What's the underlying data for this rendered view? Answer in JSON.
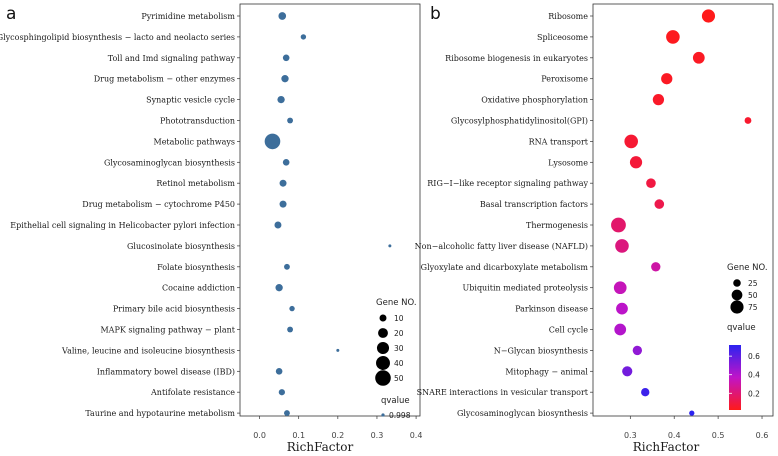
{
  "chart_data": [
    {
      "type": "scatter",
      "panel_label": "a",
      "xlabel": "RichFactor",
      "xlim": [
        -0.05,
        0.41
      ],
      "x_ticks": [
        0.0,
        0.1,
        0.2,
        0.3,
        0.4
      ],
      "x_tick_labels": [
        "0.0",
        "0.1",
        "0.2",
        "0.3",
        "0.4"
      ],
      "color": "#3d6e9b",
      "categories": [
        "Pyrimidine metabolism",
        "Glycosphingolipid biosynthesis − lacto and neolacto series",
        "Toll and Imd signaling pathway",
        "Drug metabolism − other enzymes",
        "Synaptic vesicle cycle",
        "Phototransduction",
        "Metabolic pathways",
        "Glycosaminoglycan biosynthesis",
        "Retinol metabolism",
        "Drug metabolism − cytochrome P450",
        "Epithelial cell signaling in Helicobacter pylori infection",
        "Glucosinolate biosynthesis",
        "Folate biosynthesis",
        "Cocaine addiction",
        "Primary bile acid biosynthesis",
        "MAPK signaling pathway − plant",
        "Valine, leucine and isoleucine biosynthesis",
        "Inflammatory bowel disease (IBD)",
        "Antifolate resistance",
        "Taurine and hypotaurine metabolism"
      ],
      "x": [
        0.058,
        0.112,
        0.068,
        0.065,
        0.055,
        0.078,
        0.033,
        0.068,
        0.06,
        0.06,
        0.047,
        0.333,
        0.07,
        0.05,
        0.083,
        0.078,
        0.2,
        0.05,
        0.057,
        0.07
      ],
      "gene_no": [
        12,
        6,
        9,
        11,
        11,
        7,
        50,
        9,
        10,
        10,
        10,
        1,
        7,
        11,
        6,
        7,
        1,
        9,
        8,
        7
      ],
      "qvalue": [
        0.998,
        0.998,
        0.998,
        0.998,
        0.998,
        0.998,
        0.998,
        0.998,
        0.998,
        0.998,
        0.998,
        0.998,
        0.998,
        0.998,
        0.998,
        0.998,
        0.998,
        0.998,
        0.998,
        0.998
      ],
      "size_legend": {
        "title": "Gene NO.",
        "values": [
          10,
          20,
          30,
          40,
          50
        ],
        "labels": [
          "10",
          "20",
          "30",
          "40",
          "50"
        ]
      },
      "color_legend": {
        "title": "qvalue",
        "labels": [
          "0.998"
        ]
      }
    },
    {
      "type": "scatter",
      "panel_label": "b",
      "xlabel": "RichFactor",
      "xlim": [
        0.215,
        0.625
      ],
      "x_ticks": [
        0.3,
        0.4,
        0.5,
        0.6
      ],
      "x_tick_labels": [
        "0.3",
        "0.4",
        "0.5",
        "0.6"
      ],
      "categories": [
        "Ribosome",
        "Spliceosome",
        "Ribosome biogenesis in eukaryotes",
        "Peroxisome",
        "Oxidative phosphorylation",
        "Glycosylphosphatidylinositol(GPI)",
        "RNA transport",
        "Lysosome",
        "RIG−I−like receptor signaling pathway",
        "Basal transcription factors",
        "Thermogenesis",
        "Non−alcoholic fatty liver disease (NAFLD)",
        "Glyoxylate and dicarboxylate metabolism",
        "Ubiquitin mediated proteolysis",
        "Parkinson disease",
        "Cell cycle",
        "N−Glycan biosynthesis",
        "Mitophagy − animal",
        "SNARE interactions in vesicular transport",
        "Glycosaminoglycan biosynthesis"
      ],
      "x": [
        0.478,
        0.397,
        0.456,
        0.383,
        0.364,
        0.568,
        0.302,
        0.313,
        0.347,
        0.366,
        0.273,
        0.281,
        0.358,
        0.277,
        0.281,
        0.277,
        0.316,
        0.293,
        0.334,
        0.44
      ],
      "gene_no": [
        75,
        80,
        60,
        55,
        55,
        20,
        80,
        65,
        40,
        40,
        95,
        80,
        38,
        70,
        60,
        60,
        38,
        45,
        30,
        12
      ],
      "qvalue": [
        0.02,
        0.03,
        0.04,
        0.04,
        0.05,
        0.06,
        0.07,
        0.08,
        0.1,
        0.12,
        0.18,
        0.22,
        0.3,
        0.34,
        0.38,
        0.4,
        0.48,
        0.55,
        0.68,
        0.72
      ],
      "size_legend": {
        "title": "Gene NO.",
        "values": [
          25,
          50,
          75
        ],
        "labels": [
          "25",
          "50",
          "75"
        ]
      },
      "color_legend": {
        "title": "qvalue",
        "range": [
          0.02,
          0.72
        ],
        "ticks": [
          0.2,
          0.4,
          0.6
        ],
        "labels": [
          "0.2",
          "0.4",
          "0.6"
        ],
        "high_color": "#2b23f0",
        "low_color": "#ff1a1a"
      }
    }
  ]
}
